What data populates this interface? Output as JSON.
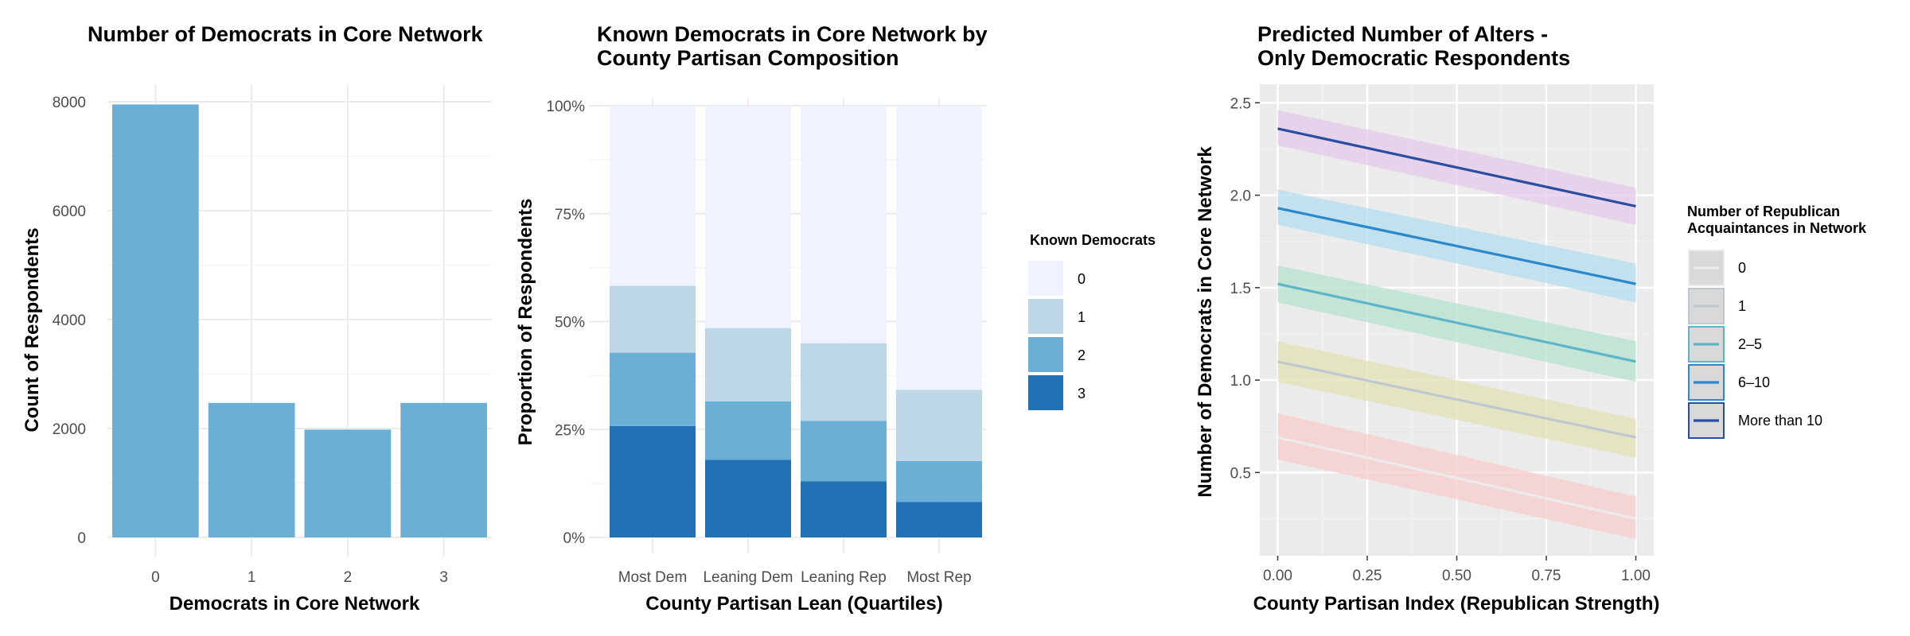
{
  "chart_data": [
    {
      "type": "bar",
      "title": "Number of Democrats in Core Network",
      "xlabel": "Democrats in Core Network",
      "ylabel": "Count of Respondents",
      "categories": [
        "0",
        "1",
        "2",
        "3"
      ],
      "values": [
        7950,
        2470,
        1980,
        2470
      ],
      "ylim": [
        0,
        8000
      ],
      "yticks": [
        0,
        2000,
        4000,
        6000,
        8000
      ],
      "grid": true,
      "color": "#6baed6"
    },
    {
      "type": "bar",
      "stacked": "proportion",
      "title": [
        "Known Democrats in Core Network by",
        "County Partisan Composition"
      ],
      "xlabel": "County Partisan Lean (Quartiles)",
      "ylabel": "Proportion of Respondents",
      "categories": [
        "Most Dem",
        "Leaning Dem",
        "Leaning Rep",
        "Most Rep"
      ],
      "ylim": [
        0,
        1
      ],
      "yticks": [
        "0%",
        "25%",
        "50%",
        "75%",
        "100%"
      ],
      "legend_title": "Known Democrats",
      "legend_position": "right",
      "series": [
        {
          "name": "0",
          "color": "#eff3ff",
          "values": [
            0.417,
            0.515,
            0.55,
            0.658
          ]
        },
        {
          "name": "1",
          "color": "#bdd7e7",
          "values": [
            0.155,
            0.17,
            0.18,
            0.165
          ]
        },
        {
          "name": "2",
          "color": "#6baed6",
          "values": [
            0.17,
            0.135,
            0.14,
            0.095
          ]
        },
        {
          "name": "3",
          "color": "#2171b5",
          "values": [
            0.258,
            0.18,
            0.13,
            0.082
          ]
        }
      ],
      "grid": true
    },
    {
      "type": "line",
      "title": [
        "Predicted Number of Alters -",
        "Only Democratic Respondents"
      ],
      "xlabel": "County Partisan Index (Republican Strength)",
      "ylabel": "Number of Democrats in Core Network",
      "xlim": [
        -0.05,
        1.05
      ],
      "ylim": [
        0.05,
        2.6
      ],
      "xticks": [
        "0.00",
        "0.25",
        "0.50",
        "0.75",
        "1.00"
      ],
      "yticks": [
        "0.5",
        "1.0",
        "1.5",
        "2.0",
        "2.5"
      ],
      "legend_title": [
        "Number of Republican",
        "Acquaintances in Network"
      ],
      "legend_position": "right",
      "series": [
        {
          "name": "0",
          "line": "#ebebeb",
          "band": "#f8cccc",
          "x": [
            0,
            1
          ],
          "y": [
            0.69,
            0.25
          ],
          "lower": [
            0.57,
            0.14
          ],
          "upper": [
            0.82,
            0.37
          ]
        },
        {
          "name": "1",
          "line": "#bdc9cf",
          "band": "#e2e2b6",
          "x": [
            0,
            1
          ],
          "y": [
            1.1,
            0.69
          ],
          "lower": [
            0.99,
            0.58
          ],
          "upper": [
            1.21,
            0.79
          ]
        },
        {
          "name": "2–5",
          "line": "#5fb5c8",
          "band": "#b5e3cf",
          "x": [
            0,
            1
          ],
          "y": [
            1.52,
            1.1
          ],
          "lower": [
            1.42,
            0.99
          ],
          "upper": [
            1.62,
            1.21
          ]
        },
        {
          "name": "6–10",
          "line": "#2b88cc",
          "band": "#b3def0",
          "x": [
            0,
            1
          ],
          "y": [
            1.93,
            1.52
          ],
          "lower": [
            1.84,
            1.42
          ],
          "upper": [
            2.03,
            1.63
          ]
        },
        {
          "name": "More than 10",
          "line": "#2a4fa2",
          "band": "#e6c9ec",
          "x": [
            0,
            1
          ],
          "y": [
            2.36,
            1.94
          ],
          "lower": [
            2.27,
            1.84
          ],
          "upper": [
            2.46,
            2.04
          ]
        }
      ],
      "grid": true,
      "panel_background": "#ebebeb"
    }
  ]
}
